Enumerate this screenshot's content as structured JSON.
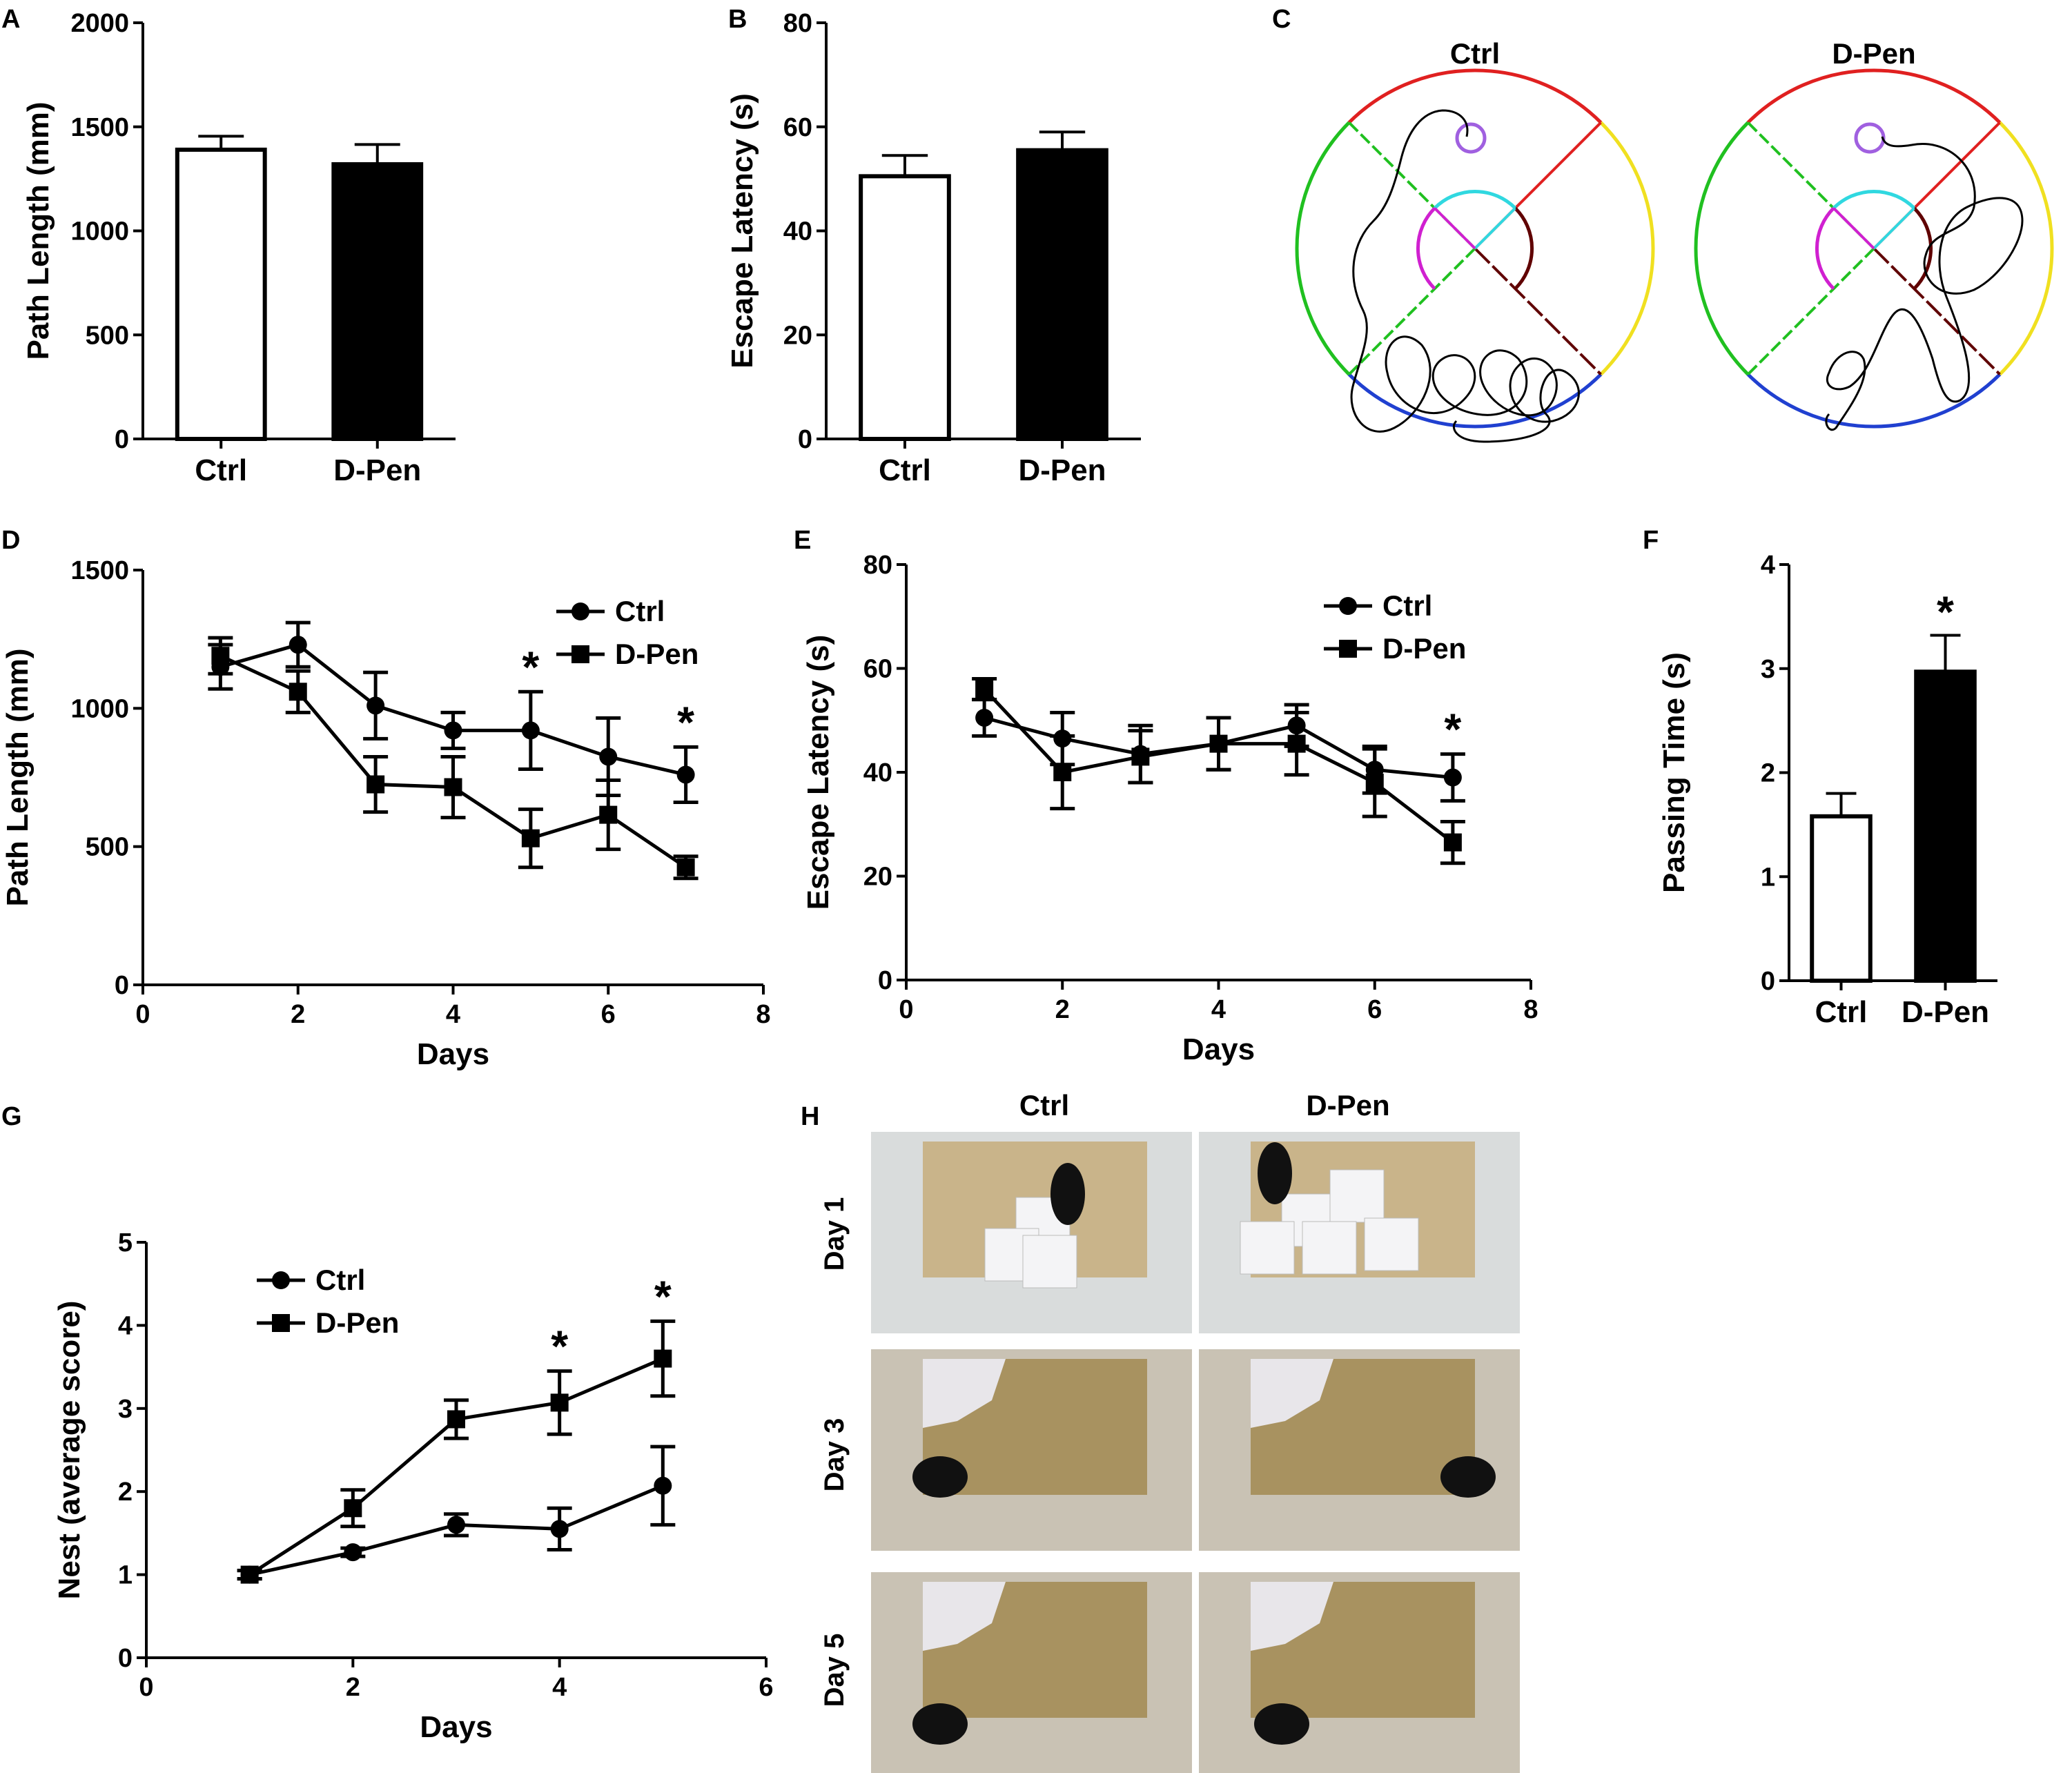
{
  "figure": {
    "panels": [
      "A",
      "B",
      "C",
      "D",
      "E",
      "F",
      "G",
      "H"
    ]
  },
  "chart_data": [
    {
      "id": "A",
      "type": "bar",
      "categories": [
        "Ctrl",
        "D-Pen"
      ],
      "values": [
        1390,
        1320
      ],
      "errors": [
        65,
        95
      ],
      "ylabel": "Path Length (mm)",
      "ylim": [
        0,
        2000
      ],
      "yticks": [
        "0",
        "500",
        "1000",
        "1500",
        "2000"
      ],
      "fills": [
        "#ffffff",
        "#000000"
      ]
    },
    {
      "id": "B",
      "type": "bar",
      "categories": [
        "Ctrl",
        "D-Pen"
      ],
      "values": [
        50.5,
        55.5
      ],
      "errors": [
        4,
        3.5
      ],
      "ylabel": "Escape Latency (s)",
      "ylim": [
        0,
        80
      ],
      "yticks": [
        "0",
        "20",
        "40",
        "60",
        "80"
      ],
      "fills": [
        "#ffffff",
        "#000000"
      ]
    },
    {
      "id": "D",
      "type": "line",
      "x": [
        1,
        2,
        3,
        4,
        5,
        6,
        7
      ],
      "series": [
        {
          "name": "Ctrl",
          "marker": "circle",
          "values": [
            1150,
            1230,
            1010,
            920,
            920,
            825,
            760
          ],
          "errors": [
            80,
            80,
            120,
            65,
            140,
            140,
            100
          ]
        },
        {
          "name": "D-Pen",
          "marker": "square",
          "values": [
            1190,
            1060,
            725,
            715,
            530,
            615,
            425
          ],
          "errors": [
            65,
            75,
            100,
            110,
            105,
            125,
            40
          ]
        }
      ],
      "significance": [
        {
          "x": 5,
          "label": "*"
        },
        {
          "x": 7,
          "label": "*"
        }
      ],
      "xlabel": "Days",
      "ylabel": "Path Length (mm)",
      "xlim": [
        0,
        8
      ],
      "ylim": [
        0,
        1500
      ],
      "xticks": [
        "0",
        "2",
        "4",
        "6",
        "8"
      ],
      "yticks": [
        "0",
        "500",
        "1000",
        "1500"
      ],
      "legend": "top-right"
    },
    {
      "id": "E",
      "type": "line",
      "x": [
        1,
        2,
        3,
        4,
        5,
        6,
        7
      ],
      "series": [
        {
          "name": "Ctrl",
          "marker": "circle",
          "values": [
            50.5,
            46.5,
            43.5,
            45.5,
            49,
            40.5,
            39
          ],
          "errors": [
            3.5,
            5,
            5.5,
            5,
            4,
            4.5,
            4.5
          ]
        },
        {
          "name": "D-Pen",
          "marker": "square",
          "values": [
            56,
            40,
            43,
            45.5,
            45.5,
            38,
            26.5
          ],
          "errors": [
            2,
            7,
            5,
            5,
            6,
            6.5,
            4
          ]
        }
      ],
      "significance": [
        {
          "x": 7,
          "label": "*"
        }
      ],
      "xlabel": "Days",
      "ylabel": "Escape Latency (s)",
      "xlim": [
        0,
        8
      ],
      "ylim": [
        0,
        80
      ],
      "xticks": [
        "0",
        "2",
        "4",
        "6",
        "8"
      ],
      "yticks": [
        "0",
        "20",
        "40",
        "60",
        "80"
      ],
      "legend": "top-right"
    },
    {
      "id": "F",
      "type": "bar",
      "categories": [
        "Ctrl",
        "D-Pen"
      ],
      "values": [
        1.58,
        2.97
      ],
      "errors": [
        0.22,
        0.35
      ],
      "significance": [
        {
          "category": "D-Pen",
          "label": "*"
        }
      ],
      "ylabel": "Passing Time (s)",
      "ylim": [
        0,
        4
      ],
      "yticks": [
        "0",
        "1",
        "2",
        "3",
        "4"
      ],
      "fills": [
        "#ffffff",
        "#000000"
      ]
    },
    {
      "id": "G",
      "type": "line",
      "x": [
        1,
        2,
        3,
        4,
        5
      ],
      "series": [
        {
          "name": "Ctrl",
          "marker": "circle",
          "values": [
            1.0,
            1.27,
            1.6,
            1.55,
            2.07
          ],
          "errors": [
            0.05,
            0.05,
            0.13,
            0.25,
            0.47
          ]
        },
        {
          "name": "D-Pen",
          "marker": "square",
          "values": [
            1.0,
            1.8,
            2.87,
            3.07,
            3.6
          ],
          "errors": [
            0.05,
            0.22,
            0.23,
            0.38,
            0.45
          ]
        }
      ],
      "significance": [
        {
          "x": 4,
          "label": "*"
        },
        {
          "x": 5,
          "label": "*"
        }
      ],
      "xlabel": "Days",
      "ylabel": "Nest (average score)",
      "xlim": [
        0,
        6
      ],
      "ylim": [
        0,
        5
      ],
      "xticks": [
        "0",
        "2",
        "4",
        "6"
      ],
      "yticks": [
        "0",
        "1",
        "2",
        "3",
        "4",
        "5"
      ],
      "legend": "top-left"
    }
  ],
  "panelC": {
    "titles": [
      "Ctrl",
      "D-Pen"
    ],
    "colors": {
      "north": "#e02020",
      "east": "#f0e020",
      "south": "#2040d0",
      "west": "#20c020",
      "platform": "#a060e0",
      "inner_top": "#30d8e0",
      "inner_left": "#d020d0",
      "inner_right": "#600000",
      "path": "#000000"
    }
  },
  "panelH": {
    "columns": [
      "Ctrl",
      "D-Pen"
    ],
    "rows": [
      "Day 1",
      "Day 3",
      "Day 5"
    ]
  }
}
